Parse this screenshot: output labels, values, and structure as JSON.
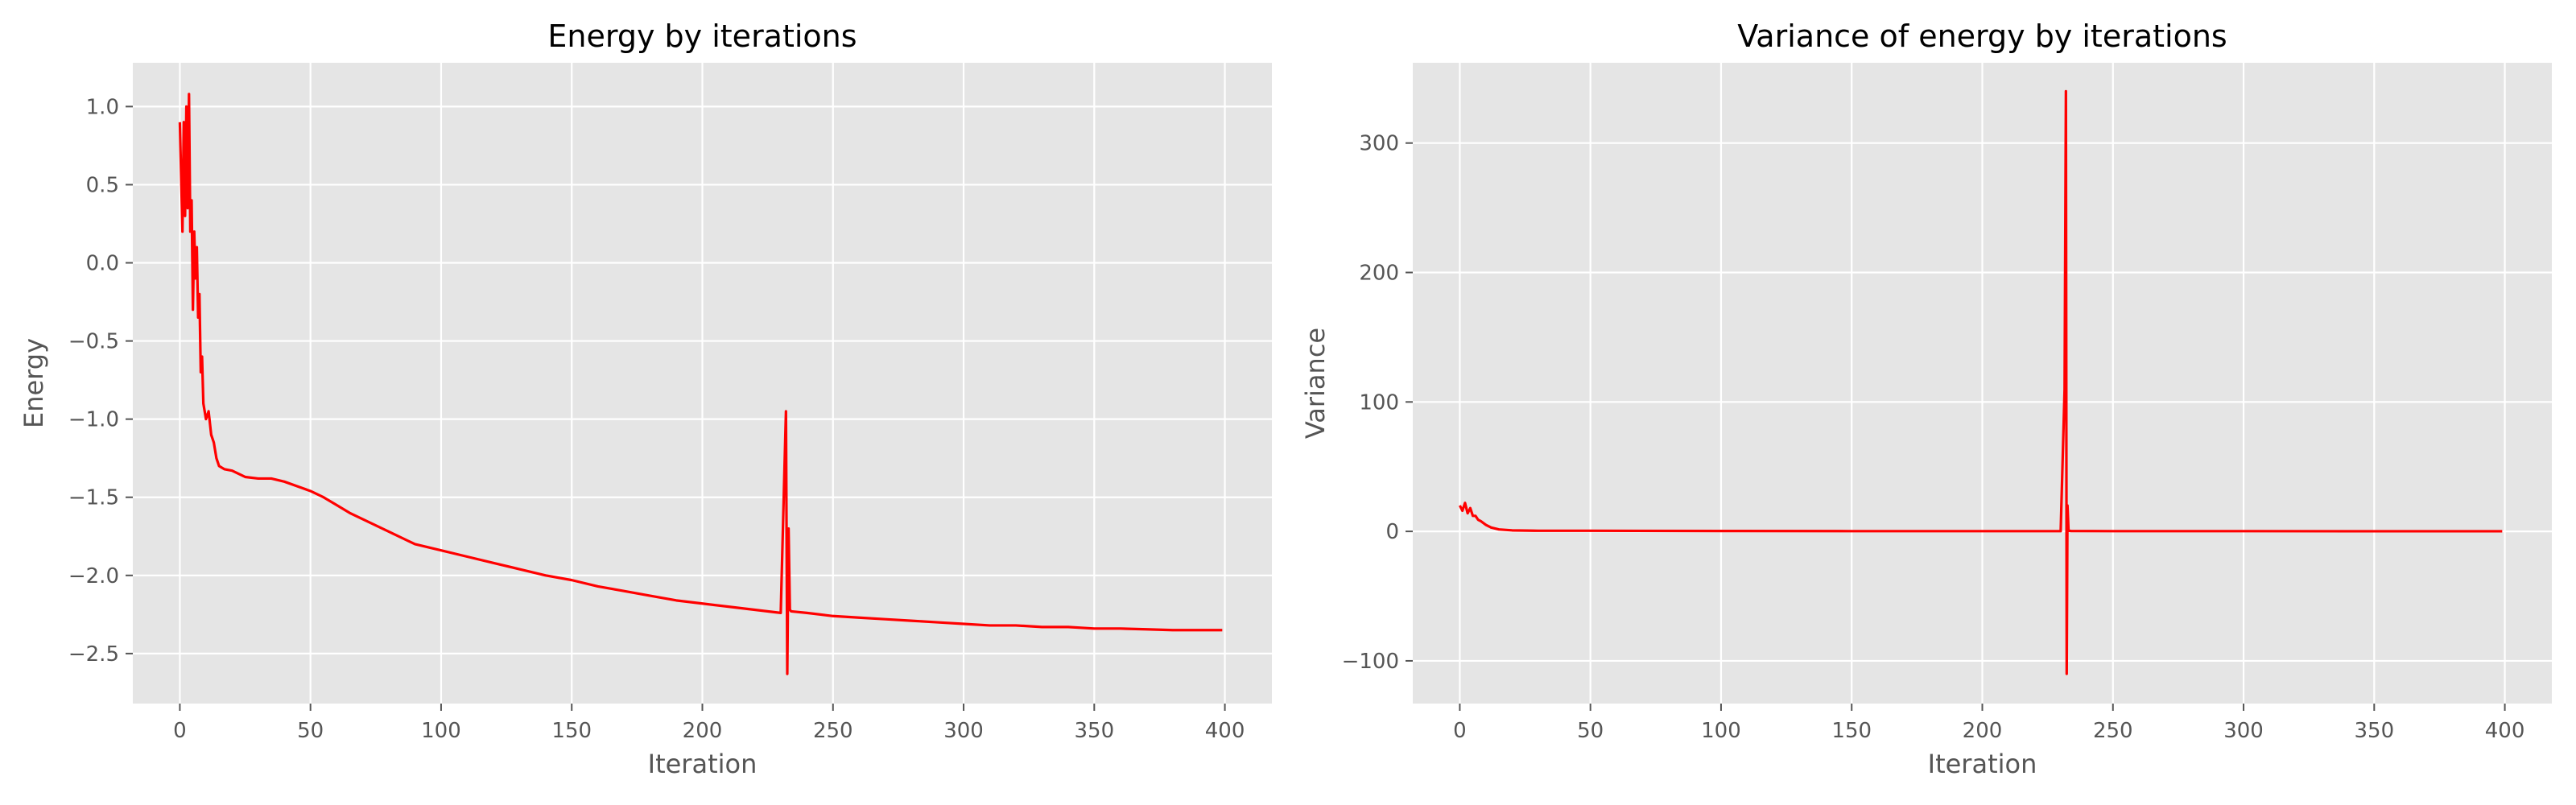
{
  "chart_data": [
    {
      "type": "line",
      "title": "Energy by iterations",
      "xlabel": "Iteration",
      "ylabel": "Energy",
      "xlim": [
        -18,
        418
      ],
      "ylim": [
        -2.82,
        1.28
      ],
      "xticks": [
        0,
        50,
        100,
        150,
        200,
        250,
        300,
        350,
        400
      ],
      "xtick_labels": [
        "0",
        "50",
        "100",
        "150",
        "200",
        "250",
        "300",
        "350",
        "400"
      ],
      "yticks": [
        1.0,
        0.5,
        0.0,
        -0.5,
        -1.0,
        -1.5,
        -2.0,
        -2.5
      ],
      "ytick_labels": [
        "1.0",
        "0.5",
        "0.0",
        "−0.5",
        "−1.0",
        "−1.5",
        "−2.0",
        "−2.5"
      ],
      "grid": true,
      "color": "#ff0000",
      "series": [
        {
          "x": [
            0,
            1,
            1.5,
            2,
            2.5,
            3,
            3.5,
            4,
            4.5,
            5,
            5.5,
            6,
            6.5,
            7,
            7.5,
            8,
            8.5,
            9,
            10,
            11,
            12,
            13,
            14,
            15,
            17,
            20,
            25,
            30,
            35,
            40,
            45,
            50,
            55,
            60,
            65,
            70,
            75,
            80,
            90,
            100,
            110,
            120,
            130,
            140,
            150,
            160,
            170,
            180,
            190,
            200,
            210,
            220,
            230,
            232,
            232.5,
            233,
            233.5,
            234,
            240,
            250,
            260,
            270,
            280,
            290,
            300,
            310,
            320,
            330,
            340,
            350,
            360,
            370,
            380,
            390,
            399
          ],
          "y": [
            0.9,
            0.2,
            0.9,
            0.3,
            1.0,
            0.35,
            1.08,
            0.2,
            0.4,
            -0.3,
            0.2,
            -0.1,
            0.1,
            -0.35,
            -0.2,
            -0.7,
            -0.6,
            -0.9,
            -1.0,
            -0.95,
            -1.1,
            -1.15,
            -1.25,
            -1.3,
            -1.32,
            -1.33,
            -1.37,
            -1.38,
            -1.38,
            -1.4,
            -1.43,
            -1.46,
            -1.5,
            -1.55,
            -1.6,
            -1.64,
            -1.68,
            -1.72,
            -1.8,
            -1.84,
            -1.88,
            -1.92,
            -1.96,
            -2.0,
            -2.03,
            -2.07,
            -2.1,
            -2.13,
            -2.16,
            -2.18,
            -2.2,
            -2.22,
            -2.24,
            -0.95,
            -2.63,
            -1.7,
            -2.22,
            -2.23,
            -2.24,
            -2.26,
            -2.27,
            -2.28,
            -2.29,
            -2.3,
            -2.31,
            -2.32,
            -2.32,
            -2.33,
            -2.33,
            -2.34,
            -2.34,
            -2.345,
            -2.35,
            -2.35,
            -2.35
          ]
        }
      ]
    },
    {
      "type": "line",
      "title": "Variance of energy by iterations",
      "xlabel": "Iteration",
      "ylabel": "Variance",
      "xlim": [
        -18,
        418
      ],
      "ylim": [
        -133,
        362
      ],
      "xticks": [
        0,
        50,
        100,
        150,
        200,
        250,
        300,
        350,
        400
      ],
      "xtick_labels": [
        "0",
        "50",
        "100",
        "150",
        "200",
        "250",
        "300",
        "350",
        "400"
      ],
      "yticks": [
        300,
        200,
        100,
        0,
        -100
      ],
      "ytick_labels": [
        "300",
        "200",
        "100",
        "0",
        "−100"
      ],
      "grid": true,
      "color": "#ff0000",
      "series": [
        {
          "x": [
            0,
            1,
            2,
            3,
            4,
            5,
            6,
            7,
            8,
            10,
            12,
            15,
            20,
            30,
            50,
            100,
            150,
            200,
            230,
            231.5,
            232,
            232.3,
            232.6,
            233,
            234,
            250,
            300,
            350,
            399
          ],
          "y": [
            20,
            16,
            22,
            14,
            18,
            12,
            12,
            9,
            8,
            5,
            3,
            1.5,
            0.8,
            0.5,
            0.5,
            0.3,
            0.2,
            0.2,
            0.2,
            110,
            340,
            -110,
            20,
            0.5,
            0.3,
            0.2,
            0.2,
            0.1,
            0.1
          ]
        }
      ]
    }
  ]
}
